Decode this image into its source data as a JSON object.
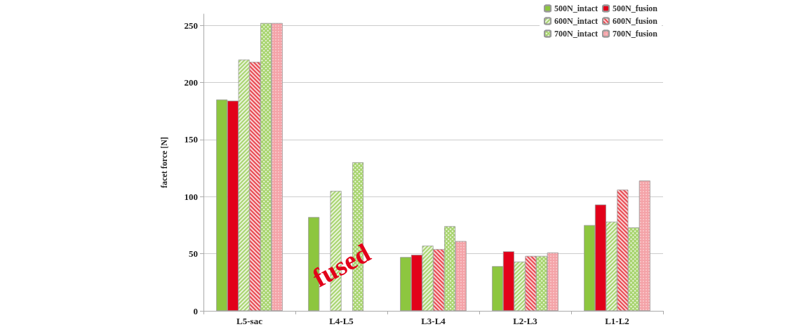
{
  "chart_data": {
    "type": "bar",
    "ylabel": "facet force [N]",
    "categories": [
      "L5-sac",
      "L4-L5",
      "L3-L4",
      "L2-L3",
      "L1-L2"
    ],
    "series": [
      {
        "name": "500N_intact",
        "color": "#8dc63f",
        "values": [
          185,
          82,
          47,
          39,
          75
        ]
      },
      {
        "name": "500N_fusion",
        "color": "#e2001a",
        "values": [
          184,
          null,
          49,
          52,
          93
        ]
      },
      {
        "name": "600N_intact",
        "color": "#a8d46f",
        "values": [
          220,
          105,
          57,
          43,
          78
        ]
      },
      {
        "name": "600N_fusion",
        "color": "#e8474f",
        "values": [
          218,
          null,
          54,
          48,
          106
        ]
      },
      {
        "name": "700N_intact",
        "color": "#a8d46f",
        "values": [
          252,
          130,
          74,
          48,
          73
        ]
      },
      {
        "name": "700N_fusion",
        "color": "#f4a3a8",
        "values": [
          252,
          null,
          61,
          51,
          114
        ]
      }
    ],
    "annotations": [
      {
        "text": "fused",
        "x": "L4-L5",
        "y": 40
      }
    ],
    "ylim": [
      0,
      260
    ],
    "yticks": [
      0,
      50,
      100,
      150,
      200,
      250
    ],
    "grid": "y",
    "legend": "top right"
  }
}
